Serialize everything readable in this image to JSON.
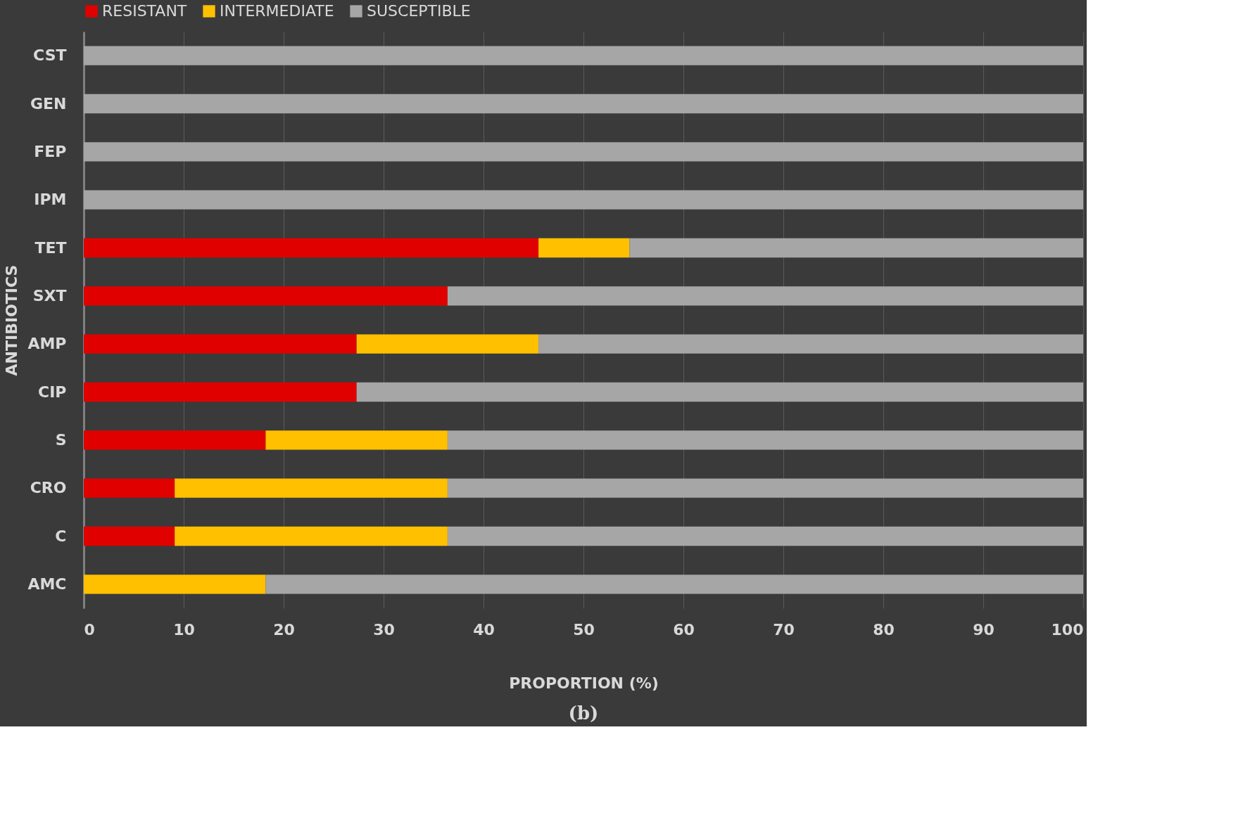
{
  "chart_data": {
    "type": "bar",
    "orientation": "horizontal",
    "stacked": true,
    "categories": [
      "CST",
      "GEN",
      "FEP",
      "IPM",
      "TET",
      "SXT",
      "AMP",
      "CIP",
      "S",
      "CRO",
      "C",
      "AMC"
    ],
    "series": [
      {
        "name": "RESISTANT",
        "color": "#e00000",
        "values": [
          0,
          0,
          0,
          0,
          45.5,
          36.4,
          27.3,
          27.3,
          18.2,
          9.1,
          9.1,
          0
        ]
      },
      {
        "name": "INTERMEDIATE",
        "color": "#ffc000",
        "values": [
          0,
          0,
          0,
          0,
          9.1,
          0,
          18.2,
          0,
          18.2,
          27.3,
          27.3,
          18.2
        ]
      },
      {
        "name": "SUSCEPTIBLE",
        "color": "#a6a6a6",
        "values": [
          100,
          100,
          100,
          100,
          45.4,
          63.6,
          54.5,
          72.7,
          63.6,
          63.6,
          63.6,
          81.8
        ]
      }
    ],
    "xlabel": "PROPORTION (%)",
    "ylabel": "ANTIBIOTICS",
    "xlim": [
      0,
      100
    ],
    "xticks": [
      0,
      10,
      20,
      30,
      40,
      50,
      60,
      70,
      80,
      90,
      100
    ],
    "grid": "x",
    "legend": "top",
    "annotations": [
      "(b)"
    ]
  }
}
